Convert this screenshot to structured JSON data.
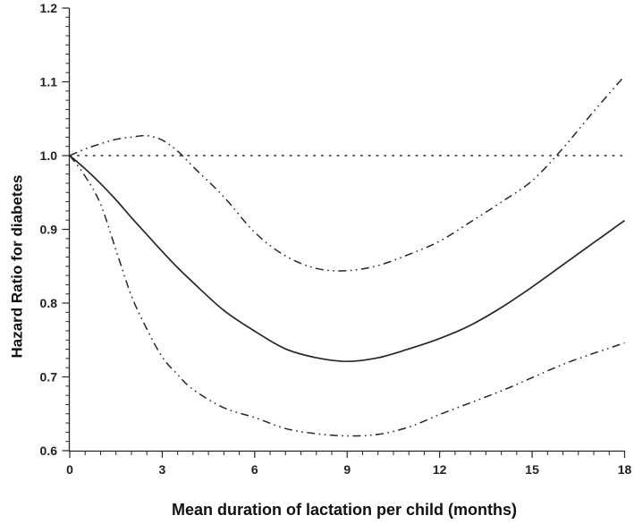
{
  "figure": {
    "background_color": "#ffffff",
    "ink_color": "#262626"
  },
  "chart_data": {
    "type": "line",
    "title": "",
    "xlabel": "Mean duration of lactation per child (months)",
    "ylabel": "Hazard Ratio for diabetes",
    "xlim": [
      0,
      18
    ],
    "ylim": [
      0.6,
      1.2
    ],
    "x_major_ticks": [
      0,
      3,
      6,
      9,
      12,
      15,
      18
    ],
    "x_major_tick_labels": [
      "0",
      "3",
      "6",
      "9",
      "12",
      "15",
      "18"
    ],
    "x_minor_ticks_between_majors": 5,
    "y_major_ticks": [
      0.6,
      0.7,
      0.8,
      0.9,
      1.0,
      1.1,
      1.2
    ],
    "y_major_tick_labels": [
      "0.6",
      "0.7",
      "0.8",
      "0.9",
      "1.0",
      "1.1",
      "1.2"
    ],
    "y_minor_ticks_between_majors": 7,
    "grid": false,
    "legend": "none",
    "reference_line": {
      "y": 1.0,
      "style": "dotted"
    },
    "x": [
      0,
      0.5,
      1,
      1.5,
      2,
      2.5,
      3,
      3.5,
      4,
      5,
      6,
      7,
      8,
      9,
      10,
      11,
      12,
      13,
      14,
      15,
      16,
      17,
      18
    ],
    "series": [
      {
        "name": "center-solid-line",
        "style": "solid",
        "values": [
          1.0,
          0.982,
          0.962,
          0.94,
          0.916,
          0.893,
          0.87,
          0.848,
          0.828,
          0.79,
          0.762,
          0.738,
          0.726,
          0.721,
          0.726,
          0.738,
          0.752,
          0.77,
          0.794,
          0.822,
          0.852,
          0.882,
          0.912
        ]
      },
      {
        "name": "upper-dash-dot-line",
        "style": "dash-dot-dot",
        "values": [
          1.0,
          1.009,
          1.016,
          1.022,
          1.025,
          1.027,
          1.021,
          1.006,
          0.985,
          0.944,
          0.896,
          0.864,
          0.847,
          0.844,
          0.851,
          0.866,
          0.884,
          0.91,
          0.937,
          0.966,
          1.01,
          1.06,
          1.108
        ]
      },
      {
        "name": "lower-dash-dot-line",
        "style": "dash-dot-dot",
        "values": [
          1.0,
          0.972,
          0.934,
          0.872,
          0.81,
          0.765,
          0.727,
          0.703,
          0.683,
          0.658,
          0.645,
          0.63,
          0.623,
          0.62,
          0.622,
          0.632,
          0.649,
          0.665,
          0.681,
          0.699,
          0.717,
          0.732,
          0.746
        ]
      }
    ]
  }
}
